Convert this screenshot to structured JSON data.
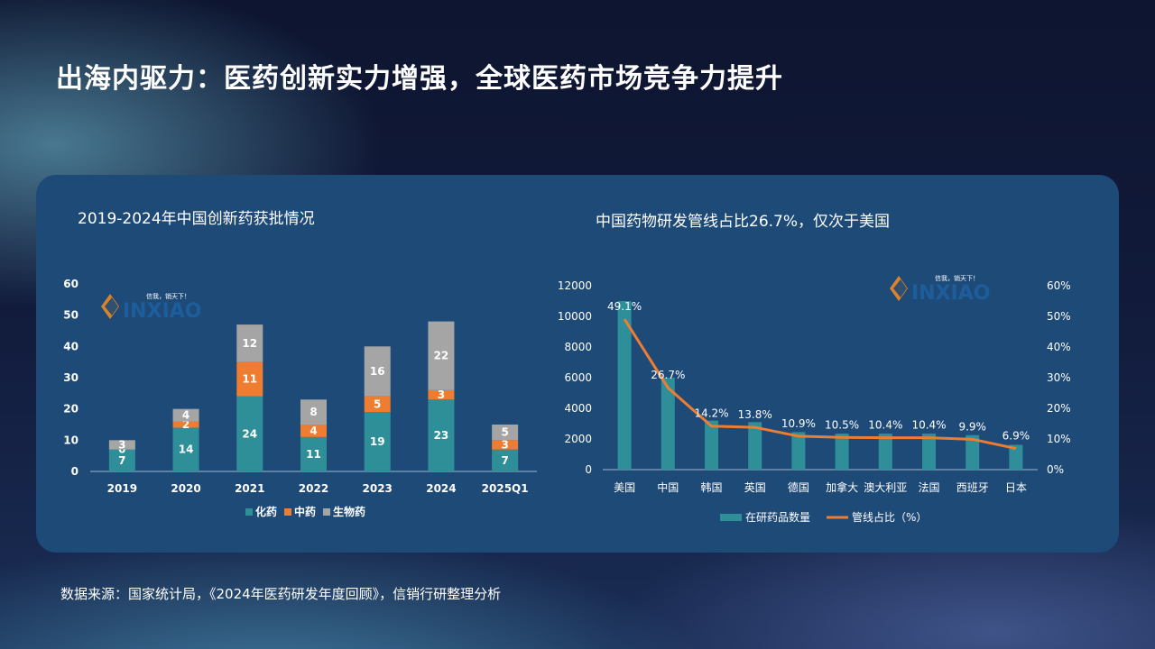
{
  "page": {
    "title": "出海内驱力：医药创新实力增强，全球医药市场竞争力提升",
    "source": "数据来源：国家统计局，《2024年医药研发年度回顾》，信销行研整理分析"
  },
  "watermark": {
    "text": "INXIAO",
    "tagline": "信我，销天下！"
  },
  "chart_data": [
    {
      "type": "bar",
      "stacked": true,
      "title": "2019-2024年中国创新药获批情况",
      "categories": [
        "2019",
        "2020",
        "2021",
        "2022",
        "2023",
        "2024",
        "2025Q1"
      ],
      "series": [
        {
          "name": "化药",
          "color": "#2f8f99",
          "values": [
            7,
            14,
            24,
            11,
            19,
            23,
            7
          ]
        },
        {
          "name": "中药",
          "color": "#ee7d31",
          "values": [
            0,
            2,
            11,
            4,
            5,
            3,
            3
          ]
        },
        {
          "name": "生物药",
          "color": "#a5a5a5",
          "values": [
            3,
            4,
            12,
            8,
            16,
            22,
            5
          ]
        }
      ],
      "ylim": [
        0,
        60
      ],
      "yticks": [
        "0",
        "10",
        "20",
        "30",
        "40",
        "50",
        "60"
      ],
      "legend": "bottom"
    },
    {
      "type": "bar",
      "title": "中国药物研发管线占比26.7%，仅次于美国",
      "categories": [
        "美国",
        "中国",
        "韩国",
        "英国",
        "德国",
        "加拿大",
        "澳大利亚",
        "法国",
        "西班牙",
        "日本"
      ],
      "series": [
        {
          "name": "在研药品数量",
          "type": "bar",
          "color": "#2f8f99",
          "axis": "left",
          "values": [
            11000,
            6000,
            3200,
            3100,
            2450,
            2350,
            2350,
            2350,
            2250,
            1620
          ]
        },
        {
          "name": "管线占比（%）",
          "type": "line",
          "color": "#ee7d31",
          "axis": "right",
          "values": [
            49.1,
            26.7,
            14.2,
            13.8,
            10.9,
            10.5,
            10.4,
            10.4,
            9.9,
            6.9
          ],
          "labels": [
            "49.1%",
            "26.7%",
            "14.2%",
            "13.8%",
            "10.9%",
            "10.5%",
            "10.4%",
            "10.4%",
            "9.9%",
            "6.9%"
          ]
        }
      ],
      "ylim_left": [
        0,
        12000
      ],
      "yticks_left": [
        "0",
        "2000",
        "4000",
        "6000",
        "8000",
        "10000",
        "12000"
      ],
      "ylim_right": [
        0,
        60
      ],
      "yticks_right": [
        "0%",
        "10%",
        "20%",
        "30%",
        "40%",
        "50%",
        "60%"
      ],
      "legend": "bottom"
    }
  ]
}
